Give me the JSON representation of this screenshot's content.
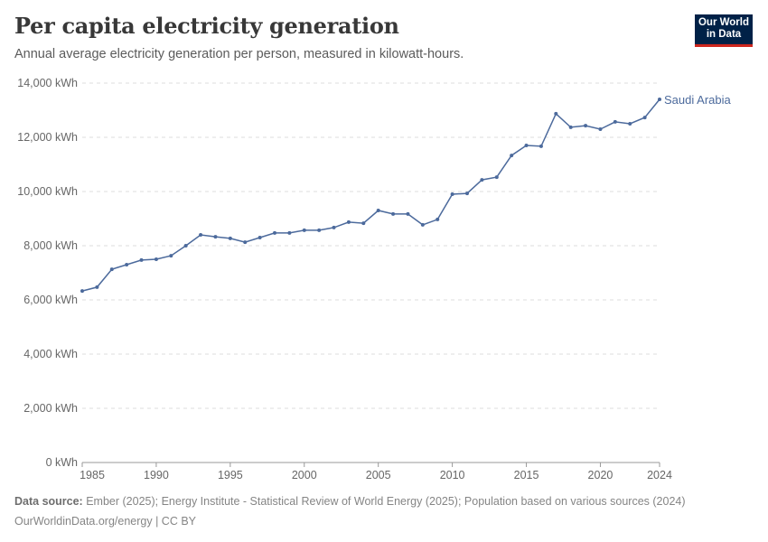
{
  "header": {
    "title": "Per capita electricity generation",
    "subtitle": "Annual average electricity generation per person, measured in kilowatt-hours.",
    "logo_text": "Our World in Data"
  },
  "footer": {
    "source_label": "Data source:",
    "source_text": "Ember (2025); Energy Institute - Statistical Review of World Energy (2025); Population based on various sources (2024)",
    "license": "OurWorldinData.org/energy | CC BY"
  },
  "colors": {
    "series": "#4c6a9c",
    "grid": "#dddddd",
    "text": "#666666"
  },
  "chart_data": {
    "type": "line",
    "title": "Per capita electricity generation",
    "xlabel": "",
    "ylabel": "",
    "ylim": [
      0,
      14000
    ],
    "xlim": [
      1985,
      2024
    ],
    "grid": "horizontal dashed",
    "y_ticks": [
      0,
      2000,
      4000,
      6000,
      8000,
      10000,
      12000,
      14000
    ],
    "y_tick_labels": [
      "0 kWh",
      "2,000 kWh",
      "4,000 kWh",
      "6,000 kWh",
      "8,000 kWh",
      "10,000 kWh",
      "12,000 kWh",
      "14,000 kWh"
    ],
    "x_ticks": [
      1985,
      1990,
      1995,
      2000,
      2005,
      2010,
      2015,
      2020,
      2024
    ],
    "x_tick_labels": [
      "1985",
      "1990",
      "1995",
      "2000",
      "2005",
      "2010",
      "2015",
      "2020",
      "2024"
    ],
    "series": [
      {
        "name": "Saudi Arabia",
        "x": [
          1985,
          1986,
          1987,
          1988,
          1989,
          1990,
          1991,
          1992,
          1993,
          1994,
          1995,
          1996,
          1997,
          1998,
          1999,
          2000,
          2001,
          2002,
          2003,
          2004,
          2005,
          2006,
          2007,
          2008,
          2009,
          2010,
          2011,
          2012,
          2013,
          2014,
          2015,
          2016,
          2017,
          2018,
          2019,
          2020,
          2021,
          2022,
          2023,
          2024
        ],
        "values": [
          6330,
          6470,
          7130,
          7300,
          7470,
          7500,
          7630,
          8000,
          8400,
          8330,
          8270,
          8130,
          8300,
          8470,
          8470,
          8570,
          8570,
          8670,
          8870,
          8830,
          9300,
          9170,
          9170,
          8770,
          8970,
          9900,
          9930,
          10430,
          10530,
          11330,
          11700,
          11670,
          12870,
          12370,
          12430,
          12300,
          12570,
          12500,
          12730,
          13400
        ]
      }
    ]
  }
}
